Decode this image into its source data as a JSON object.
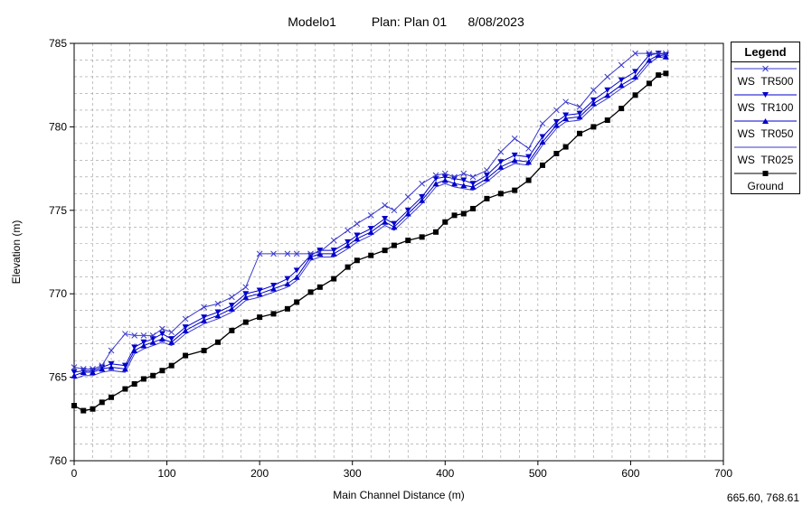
{
  "title": {
    "model": "Modelo1",
    "plan": "Plan: Plan 01",
    "date": "8/08/2023"
  },
  "legend": {
    "title": "Legend",
    "items": [
      {
        "label": "WS  TR500",
        "color": "#3a3acc",
        "marker": "x"
      },
      {
        "label": "WS  TR100",
        "color": "#0000cc",
        "marker": "tri-down"
      },
      {
        "label": "WS  TR050",
        "color": "#0000cc",
        "marker": "tri-up"
      },
      {
        "label": "WS  TR025",
        "color": "#3a3acc",
        "marker": "none"
      },
      {
        "label": "Ground",
        "color": "#000000",
        "marker": "square"
      }
    ]
  },
  "cursor_readout": "665.60, 768.61",
  "chart_data": {
    "type": "line",
    "title": "Modelo1     Plan: Plan 01     8/08/2023",
    "xlabel": "Main Channel Distance (m)",
    "ylabel": "Elevation (m)",
    "xlim": [
      0,
      700
    ],
    "ylim": [
      760,
      785
    ],
    "xticks": [
      0,
      100,
      200,
      300,
      400,
      500,
      600,
      700
    ],
    "yticks": [
      760,
      765,
      770,
      775,
      780,
      785
    ],
    "grid": true,
    "legend_position": "right",
    "series": [
      {
        "name": "WS  TR500",
        "color": "#3a3acc",
        "marker": "x",
        "x": [
          0,
          10,
          20,
          30,
          40,
          55,
          65,
          75,
          85,
          95,
          105,
          120,
          140,
          155,
          170,
          185,
          200,
          215,
          230,
          240,
          255,
          265,
          280,
          295,
          305,
          320,
          335,
          345,
          360,
          375,
          390,
          400,
          410,
          420,
          430,
          445,
          460,
          475,
          490,
          505,
          520,
          530,
          545,
          560,
          575,
          590,
          605,
          620,
          630,
          638
        ],
        "y": [
          765.6,
          765.5,
          765.5,
          765.7,
          766.6,
          767.6,
          767.5,
          767.5,
          767.5,
          767.9,
          767.7,
          768.5,
          769.2,
          769.4,
          769.8,
          770.4,
          772.4,
          772.4,
          772.4,
          772.4,
          772.4,
          772.5,
          773.2,
          773.8,
          774.2,
          774.7,
          775.3,
          775.0,
          775.8,
          776.6,
          777.1,
          777.2,
          777.0,
          777.2,
          777.0,
          777.4,
          778.5,
          779.3,
          778.7,
          780.2,
          781.0,
          781.5,
          781.2,
          782.2,
          783.0,
          783.7,
          784.4,
          784.4,
          784.4,
          784.4
        ]
      },
      {
        "name": "WS  TR100",
        "color": "#0000cc",
        "marker": "tri-down",
        "x": [
          0,
          10,
          20,
          30,
          40,
          55,
          65,
          75,
          85,
          95,
          105,
          120,
          140,
          155,
          170,
          185,
          200,
          215,
          230,
          240,
          255,
          265,
          280,
          295,
          305,
          320,
          335,
          345,
          360,
          375,
          390,
          400,
          410,
          420,
          430,
          445,
          460,
          475,
          490,
          505,
          520,
          530,
          545,
          560,
          575,
          590,
          605,
          620,
          630,
          638
        ],
        "y": [
          765.3,
          765.4,
          765.4,
          765.6,
          765.8,
          765.7,
          766.8,
          767.1,
          767.3,
          767.6,
          767.3,
          768.0,
          768.6,
          768.9,
          769.3,
          770.0,
          770.2,
          770.5,
          770.9,
          771.4,
          772.3,
          772.6,
          772.6,
          773.1,
          773.5,
          773.9,
          774.5,
          774.2,
          775.0,
          775.8,
          776.9,
          777.0,
          776.9,
          776.8,
          776.6,
          777.1,
          777.9,
          778.3,
          778.2,
          779.4,
          780.3,
          780.7,
          780.8,
          781.6,
          782.2,
          782.8,
          783.3,
          784.3,
          784.4,
          784.3
        ]
      },
      {
        "name": "WS  TR050",
        "color": "#0000cc",
        "marker": "tri-up",
        "x": [
          0,
          10,
          20,
          30,
          40,
          55,
          65,
          75,
          85,
          95,
          105,
          120,
          140,
          155,
          170,
          185,
          200,
          215,
          230,
          240,
          255,
          265,
          280,
          295,
          305,
          320,
          335,
          345,
          360,
          375,
          390,
          400,
          410,
          420,
          430,
          445,
          460,
          475,
          490,
          505,
          520,
          530,
          545,
          560,
          575,
          590,
          605,
          620,
          630,
          638
        ],
        "y": [
          765.1,
          765.3,
          765.3,
          765.5,
          765.6,
          765.5,
          766.6,
          766.9,
          767.1,
          767.3,
          767.1,
          767.8,
          768.4,
          768.7,
          769.1,
          769.8,
          770.0,
          770.3,
          770.6,
          771.0,
          772.2,
          772.4,
          772.4,
          772.9,
          773.3,
          773.7,
          774.3,
          774.0,
          774.8,
          775.6,
          776.6,
          776.8,
          776.6,
          776.5,
          776.4,
          776.9,
          777.6,
          778.0,
          777.9,
          779.1,
          780.1,
          780.5,
          780.6,
          781.4,
          781.9,
          782.5,
          783.0,
          784.0,
          784.3,
          784.2
        ]
      },
      {
        "name": "WS  TR025",
        "color": "#3a3acc",
        "marker": "none",
        "x": [
          0,
          10,
          20,
          30,
          40,
          55,
          65,
          75,
          85,
          95,
          105,
          120,
          140,
          155,
          170,
          185,
          200,
          215,
          230,
          240,
          255,
          265,
          280,
          295,
          305,
          320,
          335,
          345,
          360,
          375,
          390,
          400,
          410,
          420,
          430,
          445,
          460,
          475,
          490,
          505,
          520,
          530,
          545,
          560,
          575,
          590,
          605,
          620,
          630,
          638
        ],
        "y": [
          764.9,
          765.1,
          765.1,
          765.3,
          765.4,
          765.3,
          766.4,
          766.7,
          766.9,
          767.1,
          766.9,
          767.6,
          768.2,
          768.5,
          768.9,
          769.6,
          769.8,
          770.1,
          770.4,
          770.8,
          772.0,
          772.2,
          772.2,
          772.7,
          773.1,
          773.5,
          774.1,
          773.8,
          774.6,
          775.4,
          776.4,
          776.6,
          776.4,
          776.3,
          776.2,
          776.7,
          777.4,
          777.8,
          777.7,
          778.9,
          779.9,
          780.3,
          780.4,
          781.2,
          781.7,
          782.3,
          782.8,
          783.8,
          784.2,
          784.1
        ]
      },
      {
        "name": "Ground",
        "color": "#000000",
        "marker": "square",
        "x": [
          0,
          10,
          20,
          30,
          40,
          55,
          65,
          75,
          85,
          95,
          105,
          120,
          140,
          155,
          170,
          185,
          200,
          215,
          230,
          240,
          255,
          265,
          280,
          295,
          305,
          320,
          335,
          345,
          360,
          375,
          390,
          400,
          410,
          420,
          430,
          445,
          460,
          475,
          490,
          505,
          520,
          530,
          545,
          560,
          575,
          590,
          605,
          620,
          630,
          638
        ],
        "y": [
          763.3,
          763.0,
          763.1,
          763.5,
          763.8,
          764.3,
          764.6,
          764.9,
          765.1,
          765.4,
          765.7,
          766.3,
          766.6,
          767.1,
          767.8,
          768.3,
          768.6,
          768.8,
          769.1,
          769.5,
          770.1,
          770.4,
          770.9,
          771.6,
          772.0,
          772.3,
          772.6,
          772.9,
          773.2,
          773.4,
          773.7,
          774.3,
          774.7,
          774.8,
          775.1,
          775.7,
          776.0,
          776.2,
          776.8,
          777.7,
          778.4,
          778.8,
          779.6,
          780.0,
          780.4,
          781.1,
          781.9,
          782.6,
          783.1,
          783.2
        ]
      }
    ]
  }
}
